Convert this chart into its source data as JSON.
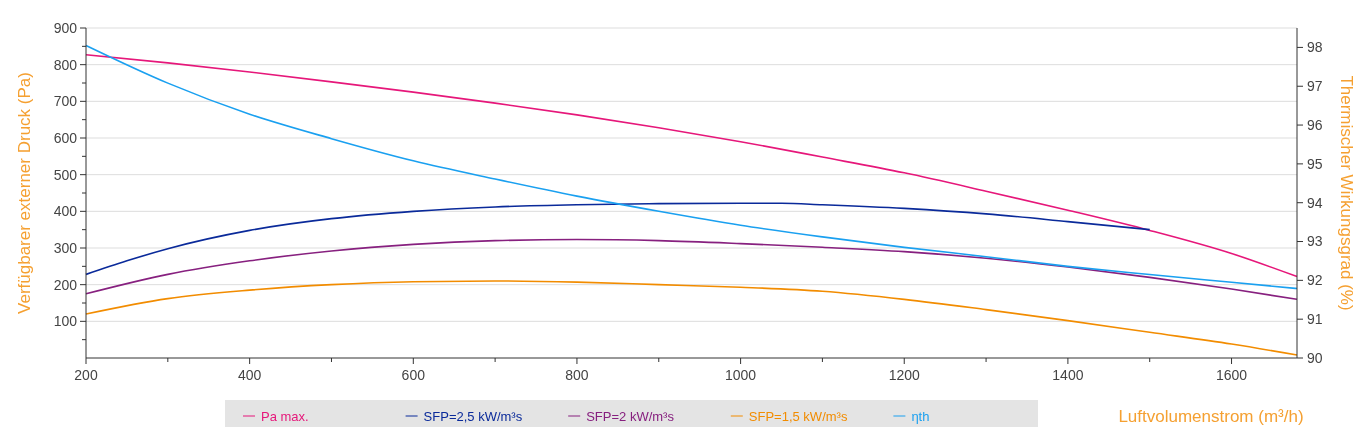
{
  "chart_data": {
    "type": "line",
    "xlabel": "Luftvolumenstrom (m³/h)",
    "ylabel": "Verfügbarer externer Druck (Pa)",
    "y2label": "Thermischer Wirkungsgrad (%)",
    "xlim": [
      200,
      1680
    ],
    "xticks": [
      200,
      {
        "value": 300,
        "label": null
      },
      400,
      {
        "value": 500,
        "label": null
      },
      600,
      {
        "value": 700,
        "label": null
      },
      800,
      {
        "value": 900,
        "label": null
      },
      1000,
      {
        "value": 1100,
        "label": null
      },
      1200,
      {
        "value": 1300,
        "label": null
      },
      1400,
      {
        "value": 1500,
        "label": null
      },
      1600
    ],
    "ylim": [
      0,
      900
    ],
    "yticks": [
      {
        "value": 50,
        "label": null
      },
      100,
      {
        "value": 150,
        "label": null
      },
      200,
      {
        "value": 250,
        "label": null
      },
      300,
      {
        "value": 350,
        "label": null
      },
      400,
      {
        "value": 450,
        "label": null
      },
      500,
      {
        "value": 550,
        "label": null
      },
      600,
      {
        "value": 650,
        "label": null
      },
      700,
      {
        "value": 750,
        "label": null
      },
      800,
      {
        "value": 850,
        "label": null
      },
      900
    ],
    "y2lim": [
      90,
      98.5
    ],
    "y2ticks": [
      90,
      91,
      92,
      93,
      94,
      95,
      96,
      97,
      98
    ],
    "grid": "y",
    "legend": "bottom",
    "marker": "none",
    "line_style": "solid",
    "series": [
      {
        "name": "Pa max.",
        "color": "#e6177a",
        "x": [
          200,
          300,
          400,
          500,
          600,
          700,
          800,
          900,
          1000,
          1100,
          1200,
          1300,
          1400,
          1500,
          1600,
          1680
        ],
        "values": [
          827,
          805,
          780,
          753,
          725,
          695,
          663,
          628,
          590,
          548,
          505,
          455,
          403,
          348,
          285,
          222
        ]
      },
      {
        "name": "SFP=2,5 kW/m³s",
        "color": "#0a2a9a",
        "x": [
          200,
          250,
          300,
          400,
          500,
          600,
          700,
          800,
          900,
          1000,
          1050,
          1100,
          1200,
          1300,
          1400,
          1500
        ],
        "values": [
          228,
          265,
          298,
          348,
          380,
          400,
          412,
          418,
          421,
          422,
          422,
          418,
          408,
          393,
          372,
          350
        ]
      },
      {
        "name": "SFP=2 kW/m³s",
        "color": "#87207f",
        "x": [
          200,
          300,
          400,
          500,
          600,
          700,
          800,
          900,
          1000,
          1100,
          1200,
          1300,
          1400,
          1500,
          1600,
          1680
        ],
        "values": [
          175,
          228,
          265,
          292,
          310,
          320,
          323,
          320,
          312,
          302,
          290,
          272,
          248,
          220,
          188,
          160
        ]
      },
      {
        "name": "SFP=1,5 kW/m³s",
        "color": "#f28c00",
        "x": [
          200,
          300,
          400,
          500,
          600,
          700,
          800,
          900,
          1000,
          1100,
          1200,
          1300,
          1400,
          1500,
          1600,
          1680
        ],
        "values": [
          120,
          162,
          185,
          200,
          208,
          210,
          207,
          200,
          193,
          182,
          160,
          132,
          102,
          70,
          38,
          8
        ]
      },
      {
        "name": "ηth",
        "color": "#1aa0f0",
        "axis": "y2",
        "x": [
          200,
          300,
          400,
          500,
          600,
          700,
          800,
          900,
          1000,
          1100,
          1200,
          1300,
          1400,
          1500,
          1600,
          1680
        ],
        "values": [
          98.05,
          97.08,
          96.28,
          95.65,
          95.08,
          94.61,
          94.17,
          93.78,
          93.42,
          93.12,
          92.85,
          92.61,
          92.36,
          92.15,
          91.95,
          91.79
        ]
      }
    ]
  }
}
